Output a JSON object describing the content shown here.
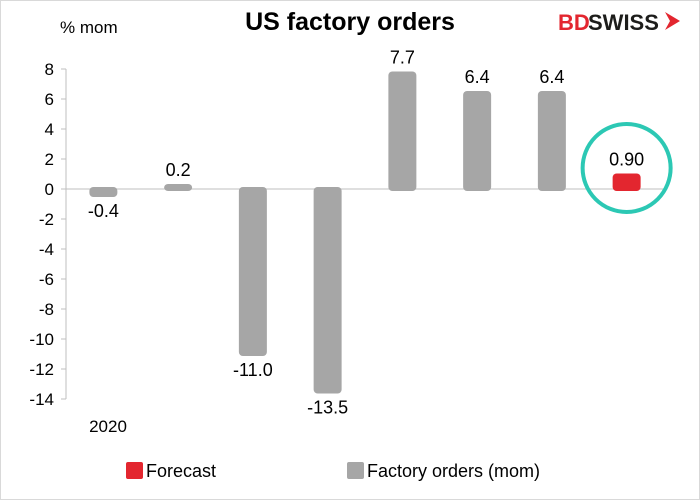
{
  "chart_data": {
    "type": "bar",
    "title": "US factory orders",
    "unit_label": "% mom",
    "ylim": [
      -14,
      8
    ],
    "yticks": [
      8,
      6,
      4,
      2,
      0,
      -2,
      -4,
      -6,
      -8,
      -10,
      -12,
      -14
    ],
    "year_label": "2020",
    "categories": [
      "",
      "",
      "",
      "",
      "",
      "",
      "",
      ""
    ],
    "series": [
      {
        "name": "Factory orders (mom)",
        "color": "#a6a6a6",
        "values": [
          -0.4,
          0.2,
          -11.0,
          -13.5,
          7.7,
          6.4,
          6.4,
          null
        ],
        "labels": [
          "-0.4",
          "0.2",
          "-11.0",
          "-13.5",
          "7.7",
          "6.4",
          "6.4",
          ""
        ]
      },
      {
        "name": "Forecast",
        "color": "#e3262f",
        "values": [
          null,
          null,
          null,
          null,
          null,
          null,
          null,
          0.9
        ],
        "labels": [
          "",
          "",
          "",
          "",
          "",
          "",
          "",
          "0.90"
        ]
      }
    ],
    "highlight": {
      "index": 7,
      "color": "#2cc8b4"
    },
    "legend": [
      {
        "label": "Forecast",
        "color": "#e3262f"
      },
      {
        "label": "Factory orders (mom)",
        "color": "#a6a6a6"
      }
    ],
    "legend_position": "bottom",
    "grid": false
  },
  "logo": {
    "part1": "BD",
    "part2": "SWISS",
    "icon": "arrow-chevron-icon",
    "brand_color": "#e3262f"
  }
}
